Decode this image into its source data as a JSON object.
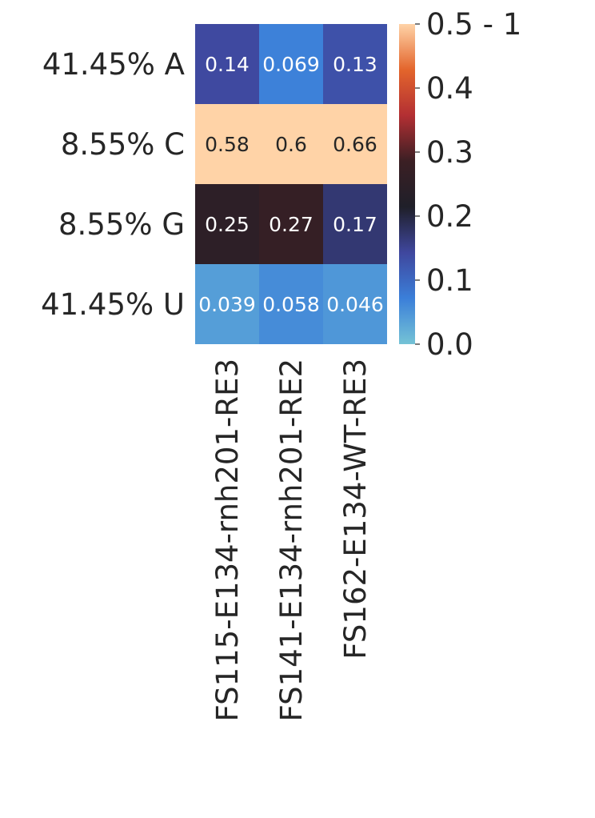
{
  "chart_data": {
    "type": "heatmap",
    "title": "",
    "xlabel": "",
    "ylabel": "",
    "rows": [
      "41.45% A",
      "8.55% C",
      "8.55% G",
      "41.45% U"
    ],
    "columns": [
      "FS115-E134-rnh201-RE3",
      "FS141-E134-rnh201-RE2",
      "FS162-E134-WT-RE3"
    ],
    "values": [
      [
        0.14,
        0.069,
        0.13
      ],
      [
        0.58,
        0.6,
        0.66
      ],
      [
        0.25,
        0.27,
        0.17
      ],
      [
        0.039,
        0.058,
        0.046
      ]
    ],
    "annotations": [
      [
        "0.14",
        "0.069",
        "0.13"
      ],
      [
        "0.58",
        "0.6",
        "0.66"
      ],
      [
        "0.25",
        "0.27",
        "0.17"
      ],
      [
        "0.039",
        "0.058",
        "0.046"
      ]
    ],
    "colorbar": {
      "range": [
        0,
        0.5
      ],
      "ticks": [
        0,
        0.1,
        0.2,
        0.3,
        0.4,
        0.5
      ],
      "tick_labels": [
        "0.0",
        "0.1",
        "0.2",
        "0.3",
        "0.4",
        "0.5 - 1"
      ],
      "colormap": "icefire",
      "center": 0.2,
      "colors": [
        "#74c3d6",
        "#3b7fd9",
        "#3f479e",
        "#1f1f29",
        "#3b1f24",
        "#b32f33",
        "#e3652c",
        "#ffd3a7"
      ]
    }
  }
}
